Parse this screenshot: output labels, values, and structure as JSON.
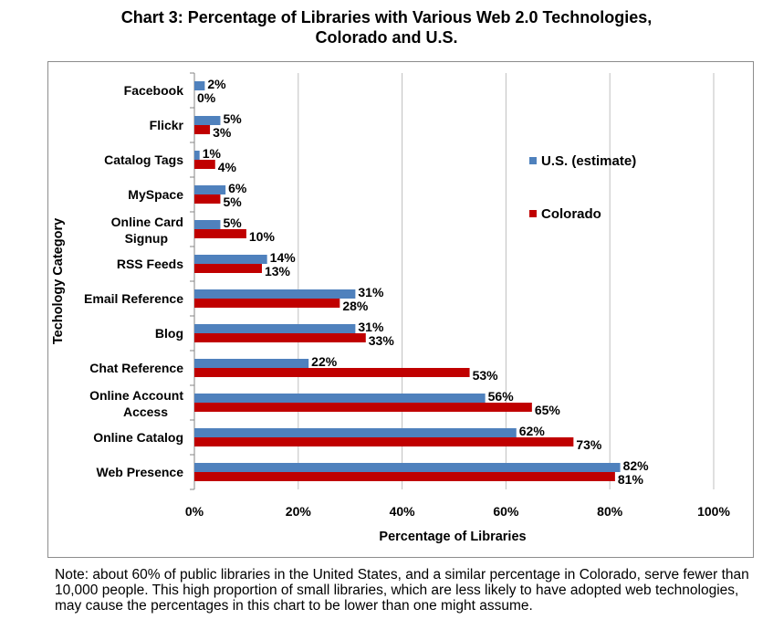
{
  "chart_data": {
    "type": "bar",
    "orientation": "horizontal",
    "title_line1": "Chart 3: Percentage of Libraries with Various Web 2.0 Technologies,",
    "title_line2": "Colorado and U.S.",
    "xlabel": "Percentage of Libraries",
    "ylabel": "Techology Category",
    "xlim": [
      0,
      100
    ],
    "x_ticks": [
      "0%",
      "20%",
      "40%",
      "60%",
      "80%",
      "100%"
    ],
    "grid": "vertical",
    "legend_position": "right",
    "categories": [
      [
        "Facebook"
      ],
      [
        "Flickr"
      ],
      [
        "Catalog Tags"
      ],
      [
        "MySpace"
      ],
      [
        "Online Card",
        "Signup"
      ],
      [
        "RSS Feeds"
      ],
      [
        "Email Reference"
      ],
      [
        "Blog"
      ],
      [
        "Chat Reference"
      ],
      [
        "Online Account",
        "Access"
      ],
      [
        "Online Catalog"
      ],
      [
        "Web Presence"
      ]
    ],
    "series": [
      {
        "name": "U.S. (estimate)",
        "color": "#4f81bd",
        "values": [
          2,
          5,
          1,
          6,
          5,
          14,
          31,
          31,
          22,
          56,
          62,
          82
        ],
        "labels": [
          "2%",
          "5%",
          "1%",
          "6%",
          "5%",
          "14%",
          "31%",
          "31%",
          "22%",
          "56%",
          "62%",
          "82%"
        ]
      },
      {
        "name": "Colorado",
        "color": "#c00000",
        "values": [
          0,
          3,
          4,
          5,
          10,
          13,
          28,
          33,
          53,
          65,
          73,
          81
        ],
        "labels": [
          "0%",
          "3%",
          "4%",
          "5%",
          "10%",
          "13%",
          "28%",
          "33%",
          "53%",
          "65%",
          "73%",
          "81%"
        ]
      }
    ]
  },
  "note": "Note: about 60% of public libraries in the United States, and a similar percentage in Colorado, serve fewer than 10,000 people. This high proportion of small libraries, which are less likely to have adopted web technologies, may cause the percentages in this chart to be lower than one might assume."
}
